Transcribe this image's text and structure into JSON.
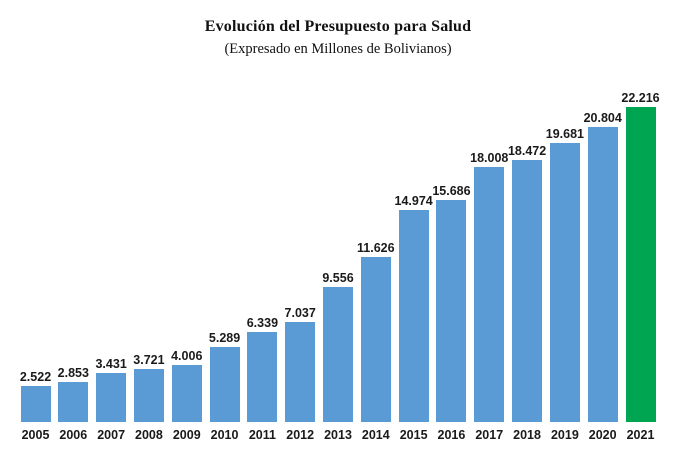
{
  "chart_data": {
    "type": "bar",
    "title": "Evolución del Presupuesto para Salud",
    "subtitle": "(Expresado en Millones de Bolivianos)",
    "xlabel": "",
    "ylabel": "",
    "unit": "Millones de Bolivianos",
    "categories": [
      "2005",
      "2006",
      "2007",
      "2008",
      "2009",
      "2010",
      "2011",
      "2012",
      "2013",
      "2014",
      "2015",
      "2016",
      "2017",
      "2018",
      "2019",
      "2020",
      "2021"
    ],
    "values": [
      2522,
      2853,
      3431,
      3721,
      4006,
      5289,
      6339,
      7037,
      9556,
      11626,
      14974,
      15686,
      18008,
      18472,
      19681,
      20804,
      22216
    ],
    "value_labels": [
      "2.522",
      "2.853",
      "3.431",
      "3.721",
      "4.006",
      "5.289",
      "6.339",
      "7.037",
      "9.556",
      "11.626",
      "14.974",
      "15.686",
      "18.008",
      "18.472",
      "19.681",
      "20.804",
      "22.216"
    ],
    "ylim": [
      0,
      22216
    ],
    "grid": false,
    "legend": false,
    "axes_visible": false,
    "bar_color": "#5B9BD5",
    "highlight_color": "#00A551",
    "highlighted_category": "2021",
    "label_color": "#1a1a1a"
  }
}
